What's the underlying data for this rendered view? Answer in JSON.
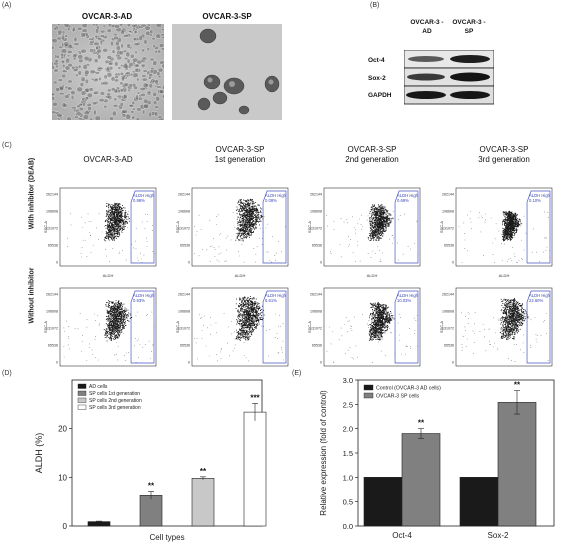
{
  "panel_labels": {
    "a": "(A)",
    "b": "(B)",
    "c": "(C)",
    "d": "(D)",
    "e": "(E)"
  },
  "panel_a": {
    "left_title": "OVCAR-3-AD",
    "right_title": "OVCAR-3-SP"
  },
  "panel_b": {
    "col1": "OVCAR-3 -AD",
    "col2": "OVCAR-3 -SP",
    "rows": [
      "Oct-4",
      "Sox-2",
      "GAPDH"
    ]
  },
  "panel_c": {
    "col_titles": [
      {
        "line1": "OVCAR-3-AD",
        "line2": ""
      },
      {
        "line1": "OVCAR-3-SP",
        "line2": "1st generation"
      },
      {
        "line1": "OVCAR-3-SP",
        "line2": "2nd generation"
      },
      {
        "line1": "OVCAR-3-SP",
        "line2": "3rd generation"
      }
    ],
    "row_labels": [
      "With inhibitor (DEAB)",
      "Without inhibitor"
    ],
    "gate_name": "ALDH High",
    "gate_values": [
      [
        "0.98%",
        "0.08%",
        "0.69%",
        "0.10%"
      ],
      [
        "0.93%",
        "6.61%",
        "10.03%",
        "22.60%"
      ]
    ],
    "yaxis": "SSC-A",
    "xaxis": "ALDH",
    "yticks": [
      "262144",
      "196608",
      "131072",
      "65536",
      "0"
    ]
  },
  "chart_data": [
    {
      "type": "bar",
      "title": "",
      "xlabel": "Cell types",
      "ylabel": "ALDH (%)",
      "ylim": [
        0,
        30
      ],
      "yticks": [
        0,
        10,
        20
      ],
      "categories": [
        "AD cells",
        "SP cells 1st generation",
        "SP cells 2nd generation",
        "SP cells 3rd generation"
      ],
      "values": [
        0.9,
        6.3,
        9.8,
        23.4
      ],
      "errors": [
        0.1,
        0.8,
        0.3,
        1.8
      ],
      "significance": [
        "",
        "**",
        "**",
        "***"
      ],
      "colors": [
        "#1a1a1a",
        "#808080",
        "#c8c8c8",
        "#ffffff"
      ],
      "legend": "top-left"
    },
    {
      "type": "bar",
      "title": "",
      "xlabel": "",
      "ylabel": "Relative expression (fold of control)",
      "ylim": [
        0,
        3.0
      ],
      "yticks": [
        0.0,
        0.5,
        1.0,
        1.5,
        2.0,
        2.5,
        3.0
      ],
      "categories": [
        "Oct-4",
        "Sox-2"
      ],
      "series": [
        {
          "name": "Control (OVCAR-3 AD cells)",
          "values": [
            1.0,
            1.0
          ],
          "errors": [
            0,
            0
          ],
          "color": "#1a1a1a"
        },
        {
          "name": "OVCAR-3 SP cells",
          "values": [
            1.9,
            2.54
          ],
          "errors": [
            0.1,
            0.24
          ],
          "color": "#808080"
        }
      ],
      "significance": [
        "**",
        "**"
      ],
      "legend": "top-left"
    }
  ]
}
